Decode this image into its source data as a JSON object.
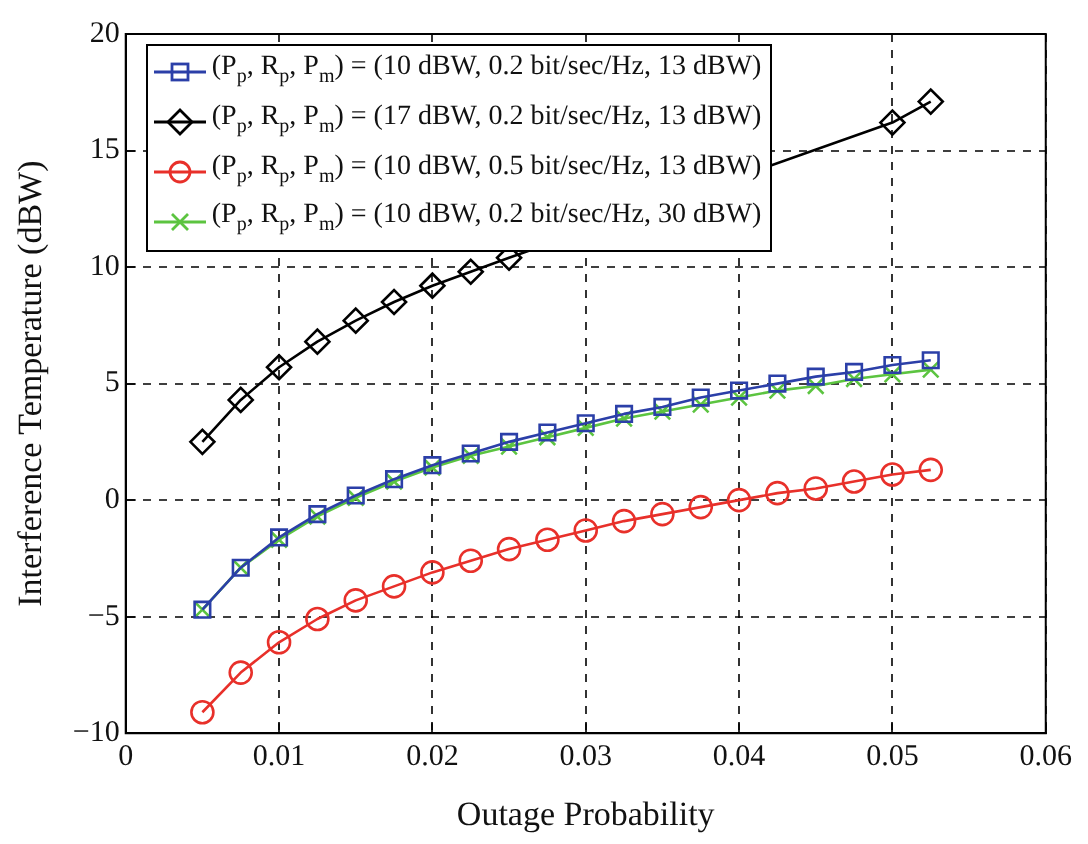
{
  "chart_data": {
    "type": "line",
    "xlabel": "Outage Probability",
    "ylabel": "Interference Temperature (dBW)",
    "x": [
      0.005,
      0.0075,
      0.01,
      0.0125,
      0.015,
      0.0175,
      0.02,
      0.0225,
      0.025,
      0.0275,
      0.03,
      0.0325,
      0.035,
      0.0375,
      0.04,
      0.0425,
      0.045,
      0.0475,
      0.05,
      0.0525
    ],
    "series": [
      {
        "name": "(P$_{p}$, R$_{p}$, P$_{m}$) = (10 dBW, 0.2 bit/sec/Hz, 13 dBW)",
        "color": "#2b3fa8",
        "marker": "square",
        "values": [
          -4.7,
          -2.9,
          -1.6,
          -0.6,
          0.2,
          0.9,
          1.5,
          2.0,
          2.5,
          2.9,
          3.3,
          3.7,
          4.0,
          4.4,
          4.7,
          5.0,
          5.3,
          5.5,
          5.8,
          6.0
        ]
      },
      {
        "name": "(P$_{p}$, R$_{p}$, P$_{m}$) = (17 dBW, 0.2 bit/sec/Hz, 13 dBW)",
        "color": "#000000",
        "marker": "diamond",
        "values": [
          2.5,
          4.3,
          5.7,
          6.8,
          7.7,
          8.5,
          9.2,
          9.8,
          10.4,
          null,
          null,
          null,
          null,
          null,
          null,
          null,
          null,
          null,
          16.2,
          17.1
        ]
      },
      {
        "name": "(P$_{p}$, R$_{p}$, P$_{m}$) = (10 dBW, 0.5 bit/sec/Hz, 13 dBW)",
        "color": "#e8302a",
        "marker": "circle",
        "values": [
          -9.1,
          -7.4,
          -6.1,
          -5.1,
          -4.3,
          -3.7,
          -3.1,
          -2.6,
          -2.1,
          -1.7,
          -1.3,
          -0.9,
          -0.6,
          -0.3,
          0.0,
          0.3,
          0.5,
          0.8,
          1.1,
          1.3
        ]
      },
      {
        "name": "(P$_{p}$, R$_{p}$, P$_{m}$) = (10 dBW, 0.2 bit/sec/Hz, 30 dBW)",
        "color": "#5cc440",
        "marker": "cross",
        "values": [
          -4.7,
          -2.9,
          -1.7,
          -0.7,
          0.1,
          0.8,
          1.4,
          1.9,
          2.3,
          2.7,
          3.1,
          3.5,
          3.8,
          4.1,
          4.4,
          4.7,
          4.9,
          5.2,
          5.4,
          5.6
        ]
      }
    ],
    "xlim": [
      0,
      0.06
    ],
    "xticks": [
      0,
      0.01,
      0.02,
      0.03,
      0.04,
      0.05,
      0.06
    ],
    "ylim": [
      -10,
      20
    ],
    "yticks": [
      -10,
      -5,
      0,
      5,
      10,
      15,
      20
    ],
    "grid": true,
    "legend": "top left",
    "line_style": "solid"
  }
}
